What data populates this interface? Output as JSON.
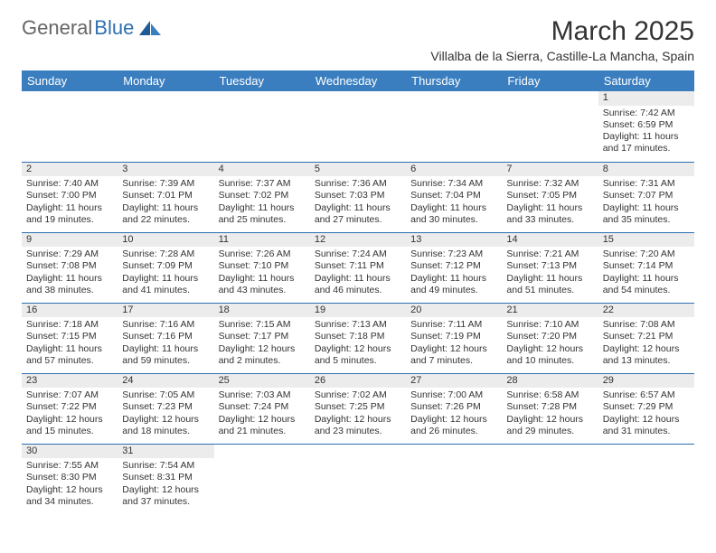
{
  "brand": {
    "part1": "General",
    "part2": "Blue"
  },
  "title": "March 2025",
  "location": "Villalba de la Sierra, Castille-La Mancha, Spain",
  "colors": {
    "header_bg": "#3a7ebf",
    "header_text": "#ffffff",
    "daynum_bg": "#ececec",
    "border": "#2e6fb0",
    "logo_blue": "#2e6fb0",
    "logo_gray": "#666666"
  },
  "day_labels": [
    "Sunday",
    "Monday",
    "Tuesday",
    "Wednesday",
    "Thursday",
    "Friday",
    "Saturday"
  ],
  "weeks": [
    [
      {
        "n": "",
        "sunrise": "",
        "sunset": "",
        "daylight": ""
      },
      {
        "n": "",
        "sunrise": "",
        "sunset": "",
        "daylight": ""
      },
      {
        "n": "",
        "sunrise": "",
        "sunset": "",
        "daylight": ""
      },
      {
        "n": "",
        "sunrise": "",
        "sunset": "",
        "daylight": ""
      },
      {
        "n": "",
        "sunrise": "",
        "sunset": "",
        "daylight": ""
      },
      {
        "n": "",
        "sunrise": "",
        "sunset": "",
        "daylight": ""
      },
      {
        "n": "1",
        "sunrise": "Sunrise: 7:42 AM",
        "sunset": "Sunset: 6:59 PM",
        "daylight": "Daylight: 11 hours and 17 minutes."
      }
    ],
    [
      {
        "n": "2",
        "sunrise": "Sunrise: 7:40 AM",
        "sunset": "Sunset: 7:00 PM",
        "daylight": "Daylight: 11 hours and 19 minutes."
      },
      {
        "n": "3",
        "sunrise": "Sunrise: 7:39 AM",
        "sunset": "Sunset: 7:01 PM",
        "daylight": "Daylight: 11 hours and 22 minutes."
      },
      {
        "n": "4",
        "sunrise": "Sunrise: 7:37 AM",
        "sunset": "Sunset: 7:02 PM",
        "daylight": "Daylight: 11 hours and 25 minutes."
      },
      {
        "n": "5",
        "sunrise": "Sunrise: 7:36 AM",
        "sunset": "Sunset: 7:03 PM",
        "daylight": "Daylight: 11 hours and 27 minutes."
      },
      {
        "n": "6",
        "sunrise": "Sunrise: 7:34 AM",
        "sunset": "Sunset: 7:04 PM",
        "daylight": "Daylight: 11 hours and 30 minutes."
      },
      {
        "n": "7",
        "sunrise": "Sunrise: 7:32 AM",
        "sunset": "Sunset: 7:05 PM",
        "daylight": "Daylight: 11 hours and 33 minutes."
      },
      {
        "n": "8",
        "sunrise": "Sunrise: 7:31 AM",
        "sunset": "Sunset: 7:07 PM",
        "daylight": "Daylight: 11 hours and 35 minutes."
      }
    ],
    [
      {
        "n": "9",
        "sunrise": "Sunrise: 7:29 AM",
        "sunset": "Sunset: 7:08 PM",
        "daylight": "Daylight: 11 hours and 38 minutes."
      },
      {
        "n": "10",
        "sunrise": "Sunrise: 7:28 AM",
        "sunset": "Sunset: 7:09 PM",
        "daylight": "Daylight: 11 hours and 41 minutes."
      },
      {
        "n": "11",
        "sunrise": "Sunrise: 7:26 AM",
        "sunset": "Sunset: 7:10 PM",
        "daylight": "Daylight: 11 hours and 43 minutes."
      },
      {
        "n": "12",
        "sunrise": "Sunrise: 7:24 AM",
        "sunset": "Sunset: 7:11 PM",
        "daylight": "Daylight: 11 hours and 46 minutes."
      },
      {
        "n": "13",
        "sunrise": "Sunrise: 7:23 AM",
        "sunset": "Sunset: 7:12 PM",
        "daylight": "Daylight: 11 hours and 49 minutes."
      },
      {
        "n": "14",
        "sunrise": "Sunrise: 7:21 AM",
        "sunset": "Sunset: 7:13 PM",
        "daylight": "Daylight: 11 hours and 51 minutes."
      },
      {
        "n": "15",
        "sunrise": "Sunrise: 7:20 AM",
        "sunset": "Sunset: 7:14 PM",
        "daylight": "Daylight: 11 hours and 54 minutes."
      }
    ],
    [
      {
        "n": "16",
        "sunrise": "Sunrise: 7:18 AM",
        "sunset": "Sunset: 7:15 PM",
        "daylight": "Daylight: 11 hours and 57 minutes."
      },
      {
        "n": "17",
        "sunrise": "Sunrise: 7:16 AM",
        "sunset": "Sunset: 7:16 PM",
        "daylight": "Daylight: 11 hours and 59 minutes."
      },
      {
        "n": "18",
        "sunrise": "Sunrise: 7:15 AM",
        "sunset": "Sunset: 7:17 PM",
        "daylight": "Daylight: 12 hours and 2 minutes."
      },
      {
        "n": "19",
        "sunrise": "Sunrise: 7:13 AM",
        "sunset": "Sunset: 7:18 PM",
        "daylight": "Daylight: 12 hours and 5 minutes."
      },
      {
        "n": "20",
        "sunrise": "Sunrise: 7:11 AM",
        "sunset": "Sunset: 7:19 PM",
        "daylight": "Daylight: 12 hours and 7 minutes."
      },
      {
        "n": "21",
        "sunrise": "Sunrise: 7:10 AM",
        "sunset": "Sunset: 7:20 PM",
        "daylight": "Daylight: 12 hours and 10 minutes."
      },
      {
        "n": "22",
        "sunrise": "Sunrise: 7:08 AM",
        "sunset": "Sunset: 7:21 PM",
        "daylight": "Daylight: 12 hours and 13 minutes."
      }
    ],
    [
      {
        "n": "23",
        "sunrise": "Sunrise: 7:07 AM",
        "sunset": "Sunset: 7:22 PM",
        "daylight": "Daylight: 12 hours and 15 minutes."
      },
      {
        "n": "24",
        "sunrise": "Sunrise: 7:05 AM",
        "sunset": "Sunset: 7:23 PM",
        "daylight": "Daylight: 12 hours and 18 minutes."
      },
      {
        "n": "25",
        "sunrise": "Sunrise: 7:03 AM",
        "sunset": "Sunset: 7:24 PM",
        "daylight": "Daylight: 12 hours and 21 minutes."
      },
      {
        "n": "26",
        "sunrise": "Sunrise: 7:02 AM",
        "sunset": "Sunset: 7:25 PM",
        "daylight": "Daylight: 12 hours and 23 minutes."
      },
      {
        "n": "27",
        "sunrise": "Sunrise: 7:00 AM",
        "sunset": "Sunset: 7:26 PM",
        "daylight": "Daylight: 12 hours and 26 minutes."
      },
      {
        "n": "28",
        "sunrise": "Sunrise: 6:58 AM",
        "sunset": "Sunset: 7:28 PM",
        "daylight": "Daylight: 12 hours and 29 minutes."
      },
      {
        "n": "29",
        "sunrise": "Sunrise: 6:57 AM",
        "sunset": "Sunset: 7:29 PM",
        "daylight": "Daylight: 12 hours and 31 minutes."
      }
    ],
    [
      {
        "n": "30",
        "sunrise": "Sunrise: 7:55 AM",
        "sunset": "Sunset: 8:30 PM",
        "daylight": "Daylight: 12 hours and 34 minutes."
      },
      {
        "n": "31",
        "sunrise": "Sunrise: 7:54 AM",
        "sunset": "Sunset: 8:31 PM",
        "daylight": "Daylight: 12 hours and 37 minutes."
      },
      {
        "n": "",
        "sunrise": "",
        "sunset": "",
        "daylight": ""
      },
      {
        "n": "",
        "sunrise": "",
        "sunset": "",
        "daylight": ""
      },
      {
        "n": "",
        "sunrise": "",
        "sunset": "",
        "daylight": ""
      },
      {
        "n": "",
        "sunrise": "",
        "sunset": "",
        "daylight": ""
      },
      {
        "n": "",
        "sunrise": "",
        "sunset": "",
        "daylight": ""
      }
    ]
  ]
}
